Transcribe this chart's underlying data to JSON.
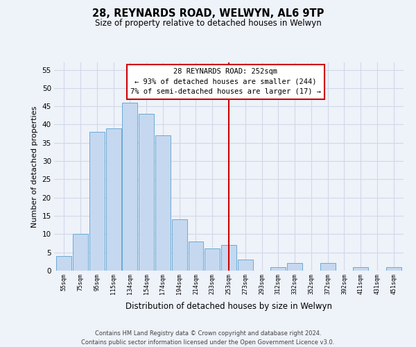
{
  "title": "28, REYNARDS ROAD, WELWYN, AL6 9TP",
  "subtitle": "Size of property relative to detached houses in Welwyn",
  "xlabel": "Distribution of detached houses by size in Welwyn",
  "ylabel": "Number of detached properties",
  "bar_labels": [
    "55sqm",
    "75sqm",
    "95sqm",
    "115sqm",
    "134sqm",
    "154sqm",
    "174sqm",
    "194sqm",
    "214sqm",
    "233sqm",
    "253sqm",
    "273sqm",
    "293sqm",
    "312sqm",
    "332sqm",
    "352sqm",
    "372sqm",
    "392sqm",
    "411sqm",
    "431sqm",
    "451sqm"
  ],
  "bar_values": [
    4,
    10,
    38,
    39,
    46,
    43,
    37,
    14,
    8,
    6,
    7,
    3,
    0,
    1,
    2,
    0,
    2,
    0,
    1,
    0,
    1
  ],
  "bar_color": "#c5d8f0",
  "bar_edge_color": "#6aaad4",
  "vline_x_index": 10,
  "vline_color": "#cc0000",
  "annotation_title": "28 REYNARDS ROAD: 252sqm",
  "annotation_line1": "← 93% of detached houses are smaller (244)",
  "annotation_line2": "7% of semi-detached houses are larger (17) →",
  "annotation_box_color": "#ffffff",
  "annotation_box_edge": "#cc0000",
  "ylim": [
    0,
    57
  ],
  "yticks": [
    0,
    5,
    10,
    15,
    20,
    25,
    30,
    35,
    40,
    45,
    50,
    55
  ],
  "footer_line1": "Contains HM Land Registry data © Crown copyright and database right 2024.",
  "footer_line2": "Contains public sector information licensed under the Open Government Licence v3.0.",
  "bg_color": "#eef2f9",
  "grid_color": "#d0d8e8"
}
